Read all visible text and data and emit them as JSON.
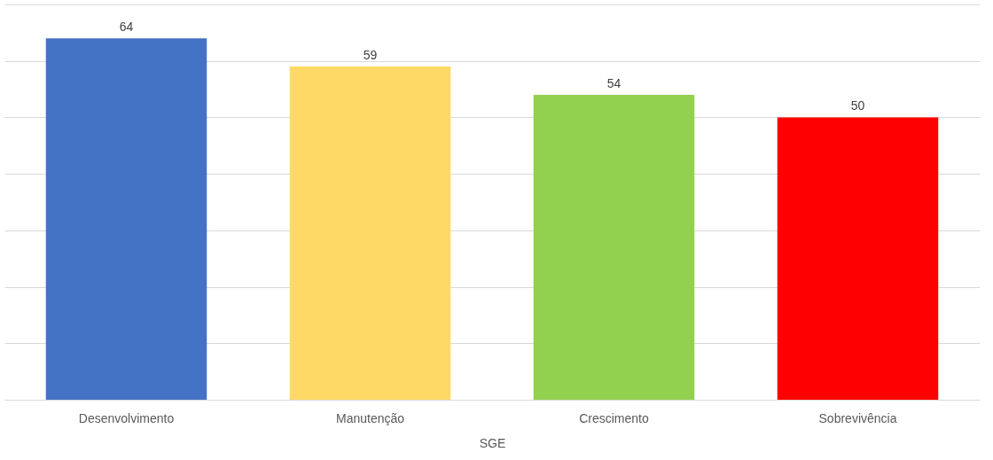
{
  "chart_data": {
    "type": "bar",
    "xlabel": "SGE",
    "categories": [
      "Desenvolvimento",
      "Manutenção",
      "Crescimento",
      "Sobrevivência"
    ],
    "values": [
      64,
      59,
      54,
      50
    ],
    "colors": [
      "#4472c4",
      "#ffd966",
      "#92d050",
      "#ff0000"
    ],
    "ylim": [
      0,
      70
    ],
    "yticks": [
      {
        "value": 0,
        "label": null
      },
      {
        "value": 10,
        "label": null
      },
      {
        "value": 20,
        "label": null
      },
      {
        "value": 30,
        "label": null
      },
      {
        "value": 40,
        "label": null
      },
      {
        "value": 50,
        "label": null
      },
      {
        "value": 60,
        "label": null
      },
      {
        "value": 70,
        "label": null
      }
    ],
    "grid": "y",
    "tick_labels": "x",
    "data_labels": true
  }
}
